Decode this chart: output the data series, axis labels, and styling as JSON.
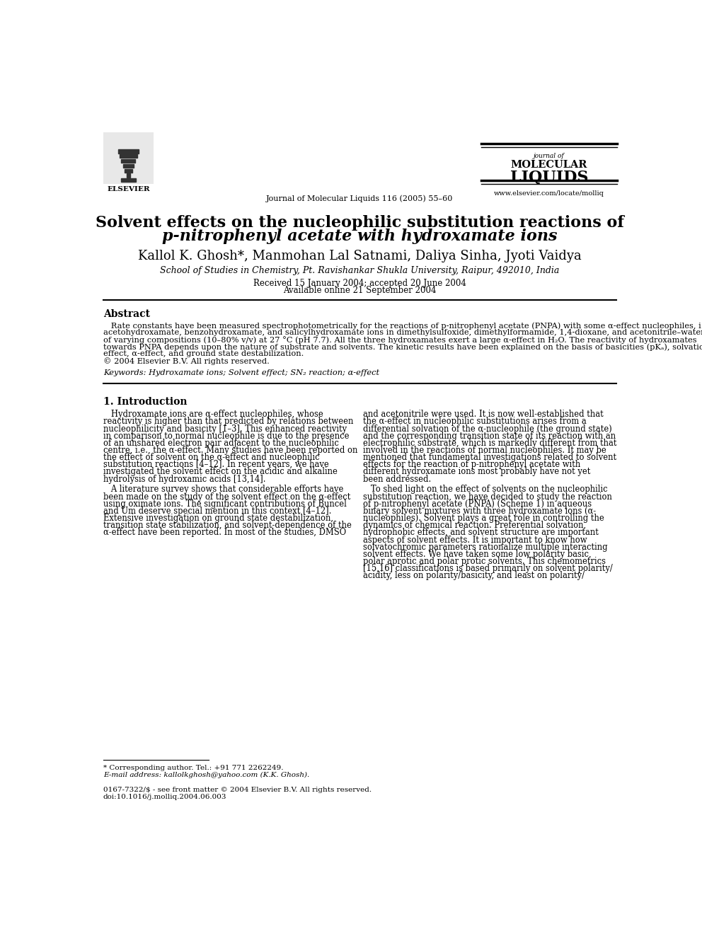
{
  "bg_color": "#ffffff",
  "title_line1": "Solvent effects on the nucleophilic substitution reactions of",
  "title_line2": "p-nitrophenyl acetate with hydroxamate ions",
  "authors": "Kallol K. Ghosh*, Manmohan Lal Satnami, Daliya Sinha, Jyoti Vaidya",
  "affiliation": "School of Studies in Chemistry, Pt. Ravishankar Shukla University, Raipur, 492010, India",
  "received": "Received 15 January 2004; accepted 20 June 2004",
  "available": "Available online 21 September 2004",
  "journal_header": "Journal of Molecular Liquids 116 (2005) 55–60",
  "journal_name_line1": "journal of",
  "journal_name_line2": "MOLECULAR",
  "journal_name_line3": "LIQUIDS",
  "journal_url": "www.elsevier.com/locate/molliq",
  "abstract_title": "Abstract",
  "keywords": "Keywords: Hydroxamate ions; Solvent effect; SN₂ reaction; α-effect",
  "section1_title": "1. Introduction",
  "footnote1": "* Corresponding author. Tel.: +91 771 2262249.",
  "footnote2": "E-mail address: kallolkghosh@yahoo.com (K.K. Ghosh).",
  "footnote3": "0167-7322/$ - see front matter © 2004 Elsevier B.V. All rights reserved.",
  "footnote4": "doi:10.1016/j.molliq.2004.06.003",
  "abs_lines": [
    "   Rate constants have been measured spectrophotometrically for the reactions of p-nitrophenyl acetate (PNPA) with some α-effect nucleophiles, i.e.,",
    "acetohydroxamate, benzohydroxamate, and salicylhydroxamate ions in dimethylsulfoxide, dimethylformamide, 1,4-dioxane, and acetonitrile–water mixtures",
    "of varying compositions (10–80% v/v) at 27 °C (pH 7.7). All the three hydroxamates exert a large α-effect in H₂O. The reactivity of hydroxamates",
    "towards PNPA depends upon the nature of substrate and solvents. The kinetic results have been explained on the basis of basicities (pKₐ), solvation",
    "effect, α-effect, and ground state destabilization.",
    "© 2004 Elsevier B.V. All rights reserved."
  ],
  "c1p1_lines": [
    "   Hydroxamate ions are α-effect nucleophiles, whose",
    "reactivity is higher than that predicted by relations between",
    "nucleophilicity and basicity [1–3]. This enhanced reactivity",
    "in comparison to normal nucleophile is due to the presence",
    "of an unshared electron pair adjacent to the nucleophilic",
    "centre, i.e., the α-effect. Many studies have been reported on",
    "the effect of solvent on the α-effect and nucleophilic",
    "substitution reactions [4–12]. In recent years, we have",
    "investigated the solvent effect on the acidic and alkaline",
    "hydrolysis of hydroxamic acids [13,14]."
  ],
  "c1p2_lines": [
    "   A literature survey shows that considerable efforts have",
    "been made on the study of the solvent effect on the α-effect",
    "using oximate ions. The significant contributions of Buncel",
    "and Um deserve special mention in this context [4–12].",
    "Extensive investigation on ground state destabilization,",
    "transition state stabilization, and solvent-dependence of the",
    "α-effect have been reported. In most of the studies, DMSO"
  ],
  "c2p1_lines": [
    "and acetonitrile were used. It is now well-established that",
    "the α-effect in nucleophilic substitutions arises from a",
    "differential solvation of the α-nucleophile (the ground state)",
    "and the corresponding transition state of its reaction with an",
    "electrophilic substrate, which is markedly different from that",
    "involved in the reactions of normal nucleophiles. It may be",
    "mentioned that fundamental investigations related to solvent",
    "effects for the reaction of p-nitrophenyl acetate with",
    "different hydroxamate ions most probably have not yet",
    "been addressed."
  ],
  "c2p2_lines": [
    "   To shed light on the effect of solvents on the nucleophilic",
    "substitution reaction, we have decided to study the reaction",
    "of p-nitrophenyl acetate (PNPA) (Scheme 1) in aqueous",
    "binary solvent mixtures with three hydroxamate ions (α-",
    "nucleophiles). Solvent plays a great role in controlling the",
    "dynamics of chemical reaction. Preferential solvation,",
    "hydrophobic effects, and solvent structure are important",
    "aspects of solvent effects. It is important to know how",
    "solvatochromic parameters rationalize multiple interacting",
    "solvent effects. We have taken some low polarity basic,",
    "polar aprotic and polar protic solvents. This chemometrics",
    "[15,16] classifications is based primarily on solvent polarity/",
    "acidity, less on polarity/basicity, and least on polarity/"
  ]
}
